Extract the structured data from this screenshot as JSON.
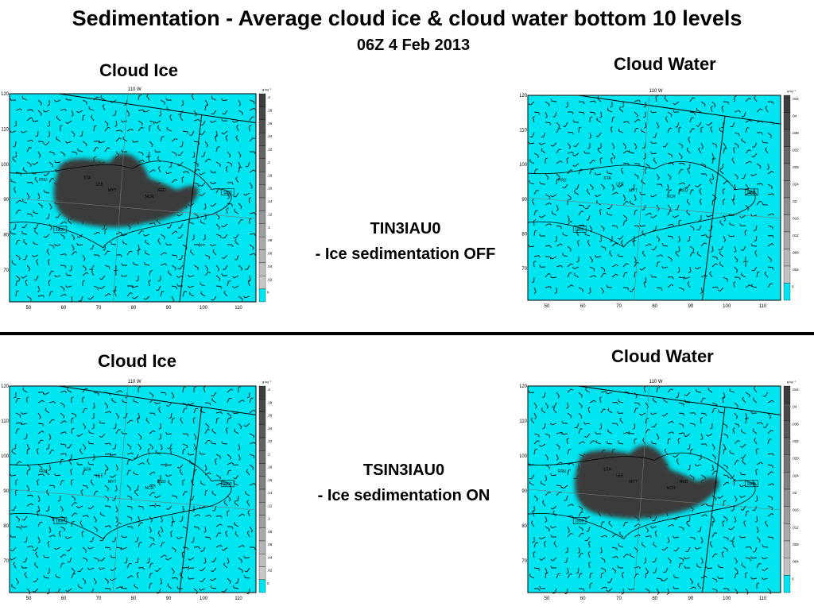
{
  "title": "Sedimentation - Average cloud ice & cloud water bottom 10 levels",
  "subtitle": "06Z 4 Feb 2013",
  "runs": [
    {
      "line1": "TIN3IAU0",
      "line2": "- Ice sedimentation OFF"
    },
    {
      "line1": "TSIN3IAU0",
      "line2": "- Ice sedimentation ON"
    }
  ],
  "panels": {
    "top_left": {
      "label": "Cloud Ice",
      "blob": "large",
      "scale": "ice"
    },
    "top_right": {
      "label": "Cloud Water",
      "blob": "none",
      "scale": "water"
    },
    "bottom_left": {
      "label": "Cloud Ice",
      "blob": "none",
      "scale": "ice"
    },
    "bottom_right": {
      "label": "Cloud Water",
      "blob": "large",
      "scale": "water"
    }
  },
  "map": {
    "lon_header": "110 W",
    "x_ticks": [
      "50",
      "60",
      "70",
      "80",
      "90",
      "100",
      "110"
    ],
    "y_ticks": [
      "120",
      "110",
      "100",
      "90",
      "80",
      "70"
    ],
    "contour_label": "1800",
    "place_labels": [
      "FRU",
      "STA",
      "LEE",
      "MYT",
      "NCR",
      "RED"
    ],
    "colorbar_unit": "g kg⁻¹",
    "ice_scale": [
      ".3",
      ".28",
      ".26",
      ".24",
      ".22",
      ".2",
      ".18",
      ".16",
      ".14",
      ".12",
      ".1",
      ".08",
      ".06",
      ".04",
      ".02",
      "0"
    ],
    "water_scale": [
      ".044",
      ".04",
      ".036",
      ".032",
      ".028",
      ".024",
      ".02",
      ".016",
      ".012",
      ".008",
      ".004",
      "0"
    ]
  },
  "colors": {
    "field": "#00e5f0",
    "blob": "#3a3a3a",
    "colorbar_dark": "#333333",
    "colorbar_light": "#00e5f0"
  }
}
